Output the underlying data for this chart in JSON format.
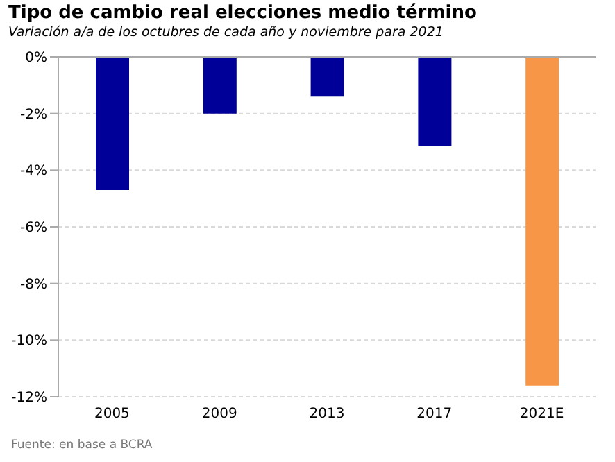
{
  "chart_data": {
    "type": "bar",
    "title": "Tipo de cambio real elecciones medio término",
    "subtitle": "Variación a/a de los octubres de cada año y noviembre para 2021",
    "categories": [
      "2005",
      "2009",
      "2013",
      "2017",
      "2021E"
    ],
    "values": [
      -4.7,
      -2.0,
      -1.4,
      -3.15,
      -11.6
    ],
    "colors": [
      "#000099",
      "#000099",
      "#000099",
      "#000099",
      "#f79646"
    ],
    "ylim": [
      -12,
      0
    ],
    "yticks": [
      {
        "value": 0,
        "label": "0%"
      },
      {
        "value": -2,
        "label": "-2%"
      },
      {
        "value": -4,
        "label": "-4%"
      },
      {
        "value": -6,
        "label": "-6%"
      },
      {
        "value": -8,
        "label": "-8%"
      },
      {
        "value": -10,
        "label": "-10%"
      },
      {
        "value": -12,
        "label": "-12%"
      }
    ],
    "grid": "y",
    "annotations": [
      "Fuente: en base a BCRA"
    ]
  }
}
